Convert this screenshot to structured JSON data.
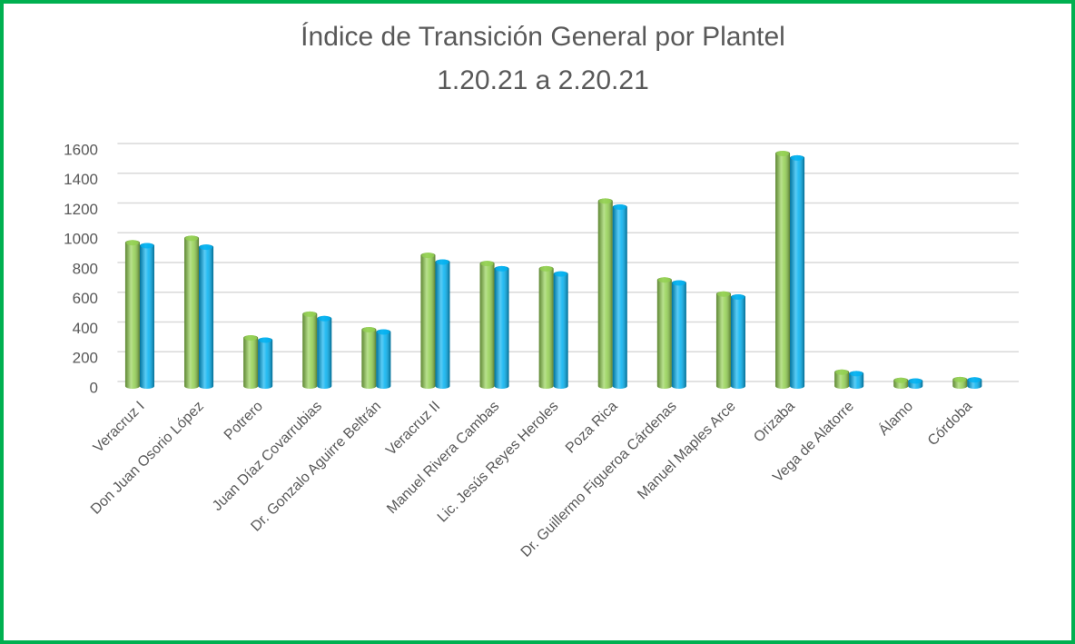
{
  "chart_data": {
    "type": "bar",
    "title": "Índice de Transición General por Plantel",
    "subtitle": "1.20.21 a 2.20.21",
    "categories": [
      "Veracruz I",
      "Don Juan Osorio López",
      "Potrero",
      "Juan Díaz Covarrubias",
      "Dr. Gonzalo Aguirre Beltrán",
      "Veracruz II",
      "Manuel Rivera Cambas",
      "Lic. Jesús Reyes Heroles",
      "Poza Rica",
      "Dr. Guillermo Figueroa Cárdenas",
      "Manuel Maples Arce",
      "Orizaba",
      "Vega de Alatorre",
      "Álamo",
      "Córdoba"
    ],
    "series": [
      {
        "color": "#92d050",
        "values": [
          1000,
          1030,
          360,
          520,
          415,
          915,
          860,
          825,
          1280,
          750,
          655,
          1600,
          130,
          75,
          80
        ]
      },
      {
        "color": "#00b0f0",
        "values": [
          980,
          970,
          345,
          490,
          400,
          870,
          825,
          790,
          1240,
          730,
          635,
          1570,
          120,
          70,
          78
        ]
      }
    ],
    "ylim": [
      0,
      1600
    ],
    "yticks": [
      0,
      200,
      400,
      600,
      800,
      1000,
      1200,
      1400,
      1600
    ],
    "grid": true
  }
}
